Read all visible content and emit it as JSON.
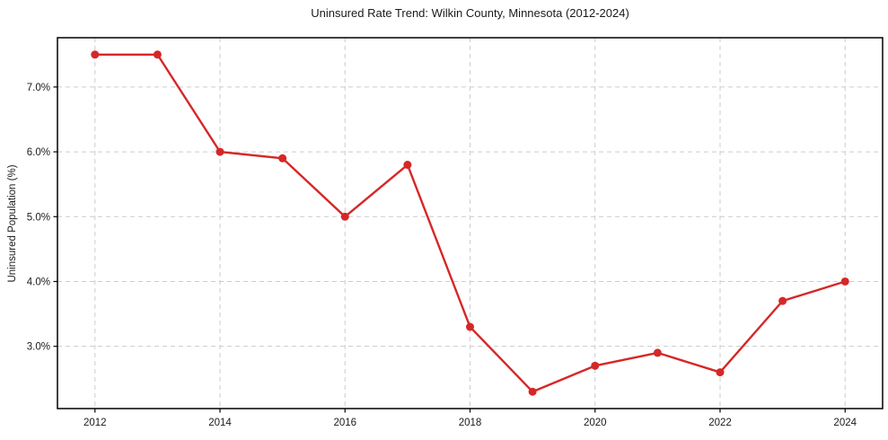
{
  "chart_data": {
    "type": "line",
    "title": "Uninsured Rate Trend: Wilkin County, Minnesota (2012-2024)",
    "xlabel": "",
    "ylabel": "Uninsured Population (%)",
    "x": [
      2012,
      2013,
      2014,
      2015,
      2016,
      2017,
      2018,
      2019,
      2020,
      2021,
      2022,
      2023,
      2024
    ],
    "y": [
      7.5,
      7.5,
      6.0,
      5.9,
      5.0,
      5.8,
      3.3,
      2.3,
      2.7,
      2.9,
      2.6,
      3.7,
      4.0
    ],
    "xlim": [
      2011.4,
      2024.6
    ],
    "ylim": [
      2.04,
      7.76
    ],
    "xticks": {
      "values": [
        2012,
        2014,
        2016,
        2018,
        2020,
        2022,
        2024
      ],
      "labels": [
        "2012",
        "2014",
        "2016",
        "2018",
        "2020",
        "2022",
        "2024"
      ]
    },
    "yticks": {
      "values": [
        3,
        4,
        5,
        6,
        7
      ],
      "labels": [
        "3.0%",
        "4.0%",
        "5.0%",
        "6.0%",
        "7.0%"
      ]
    },
    "grid": true,
    "grid_style": "dashed",
    "legend": false,
    "marker": "circle",
    "colors": {
      "line": "#d62728",
      "marker": "#d62728",
      "grid": "#cccccc",
      "axis": "#000000",
      "text": "#1a1a1a",
      "background": "#ffffff"
    }
  }
}
